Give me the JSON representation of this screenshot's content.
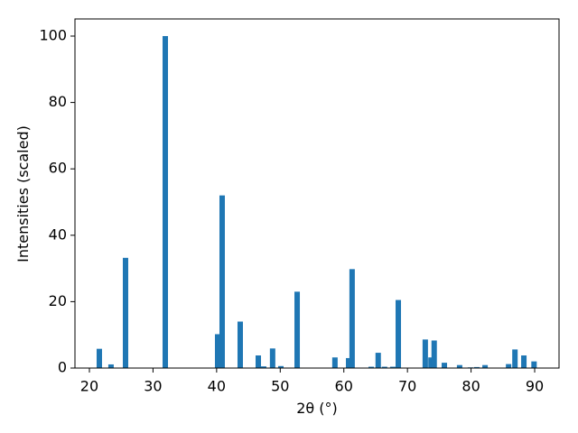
{
  "chart_data": {
    "type": "bar",
    "x_label": "2θ (°)",
    "y_label": "Intensities (scaled)",
    "x": [
      21.56,
      23.4,
      25.68,
      31.93,
      40.16,
      40.87,
      43.71,
      46.55,
      47.4,
      48.8,
      50.1,
      52.66,
      58.6,
      60.75,
      61.3,
      64.3,
      65.4,
      66.4,
      67.7,
      68.56,
      72.8,
      73.7,
      74.2,
      75.8,
      78.2,
      79.9,
      80.9,
      82.2,
      85.9,
      86.9,
      88.3,
      89.9
    ],
    "values": [
      5.8,
      1.1,
      33.2,
      100,
      10.2,
      52,
      14,
      3.8,
      0.5,
      5.9,
      0.6,
      23,
      3.2,
      3,
      29.8,
      0.4,
      4.6,
      0.4,
      0.4,
      20.5,
      8.6,
      3.2,
      8.3,
      1.6,
      0.9,
      0.2,
      0.3,
      0.9,
      1.2,
      5.6,
      3.8,
      2
    ],
    "color": "#1f77b4",
    "xlim": [
      17.73,
      93.83
    ],
    "ylim": [
      0,
      105.16
    ],
    "xticks": [
      20,
      30,
      40,
      50,
      60,
      70,
      80,
      90
    ],
    "yticks": [
      0,
      20,
      40,
      60,
      80,
      100
    ]
  }
}
